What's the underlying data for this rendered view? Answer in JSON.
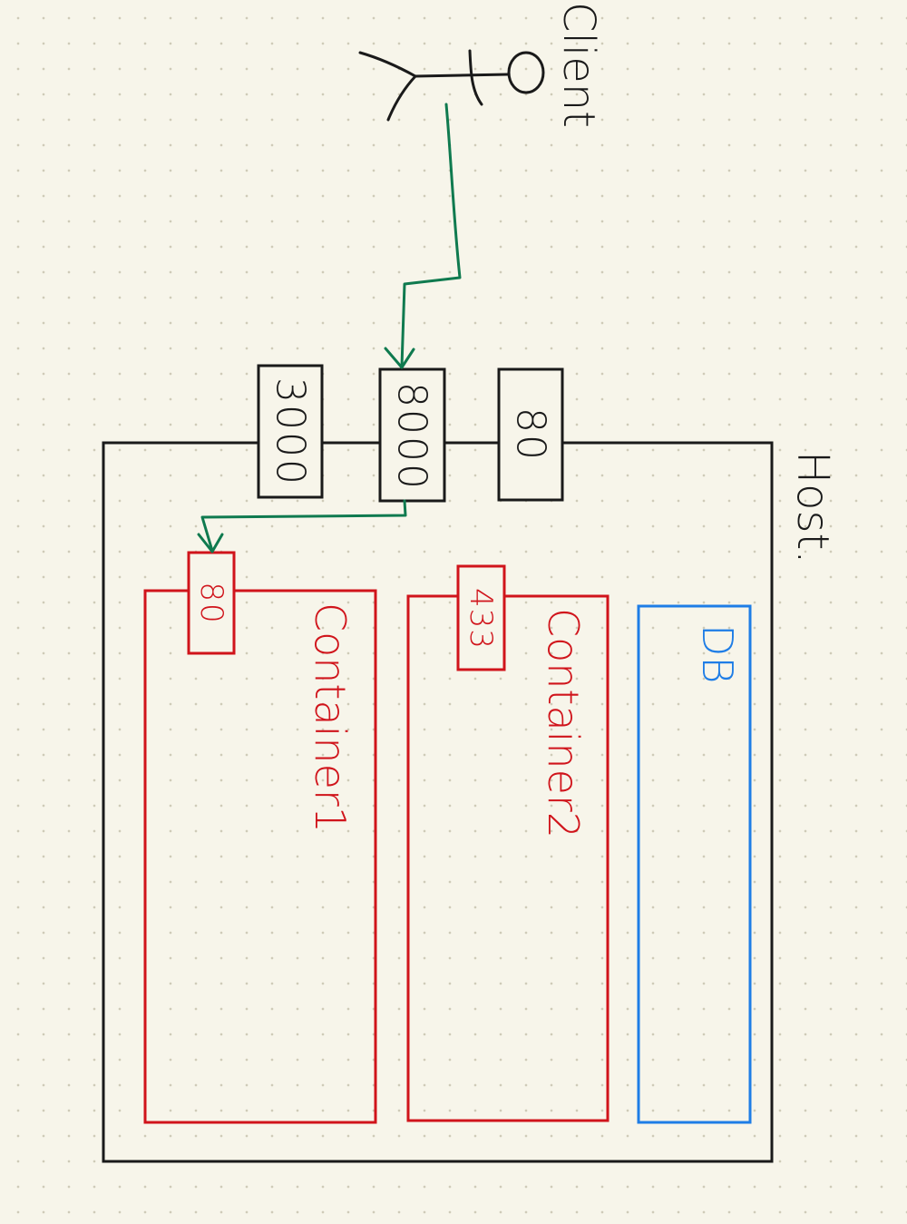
{
  "client": {
    "label": "Client"
  },
  "host": {
    "label": "Host."
  },
  "host_ports": [
    {
      "label": "3000"
    },
    {
      "label": "8000"
    },
    {
      "label": "80"
    }
  ],
  "containers": [
    {
      "label": "Container1",
      "port": "80"
    },
    {
      "label": "Container2",
      "port": "433"
    }
  ],
  "db": {
    "label": "DB"
  },
  "colors": {
    "ink": "#1a1a1a",
    "container": "#d0141b",
    "db": "#1e7de6",
    "flow": "#0f7a4f"
  }
}
